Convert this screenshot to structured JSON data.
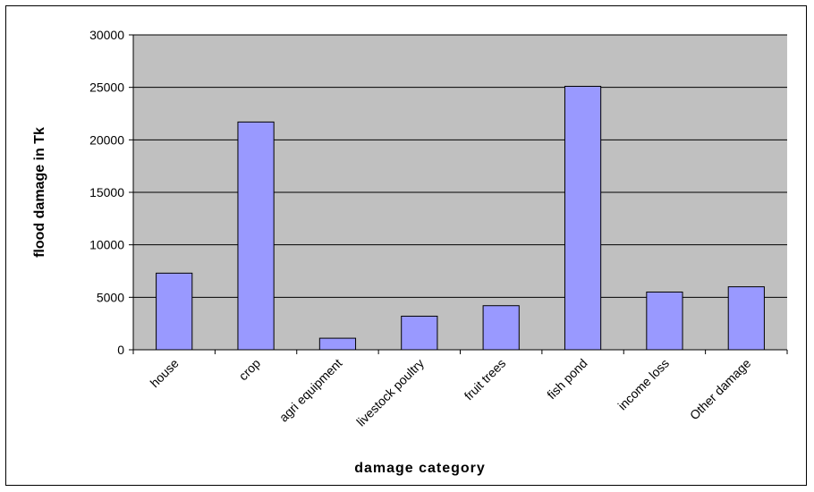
{
  "chart_data": {
    "type": "bar",
    "categories": [
      "house",
      "crop",
      "agri equipment",
      "livestock poultry",
      "fruit trees",
      "fish pond",
      "income loss",
      "Other damage"
    ],
    "values": [
      7300,
      21700,
      1100,
      3200,
      4200,
      25100,
      5500,
      6000
    ],
    "title": "",
    "xlabel": "damage category",
    "ylabel": "flood damage in Tk",
    "ylim": [
      0,
      30000
    ],
    "yticks": [
      0,
      5000,
      10000,
      15000,
      20000,
      25000,
      30000
    ],
    "grid": true,
    "legend": "none",
    "colors": {
      "plot_background": "#c0c0c0",
      "bar_fill": "#9999ff",
      "bar_stroke": "#000000",
      "gridline": "#000000"
    }
  }
}
